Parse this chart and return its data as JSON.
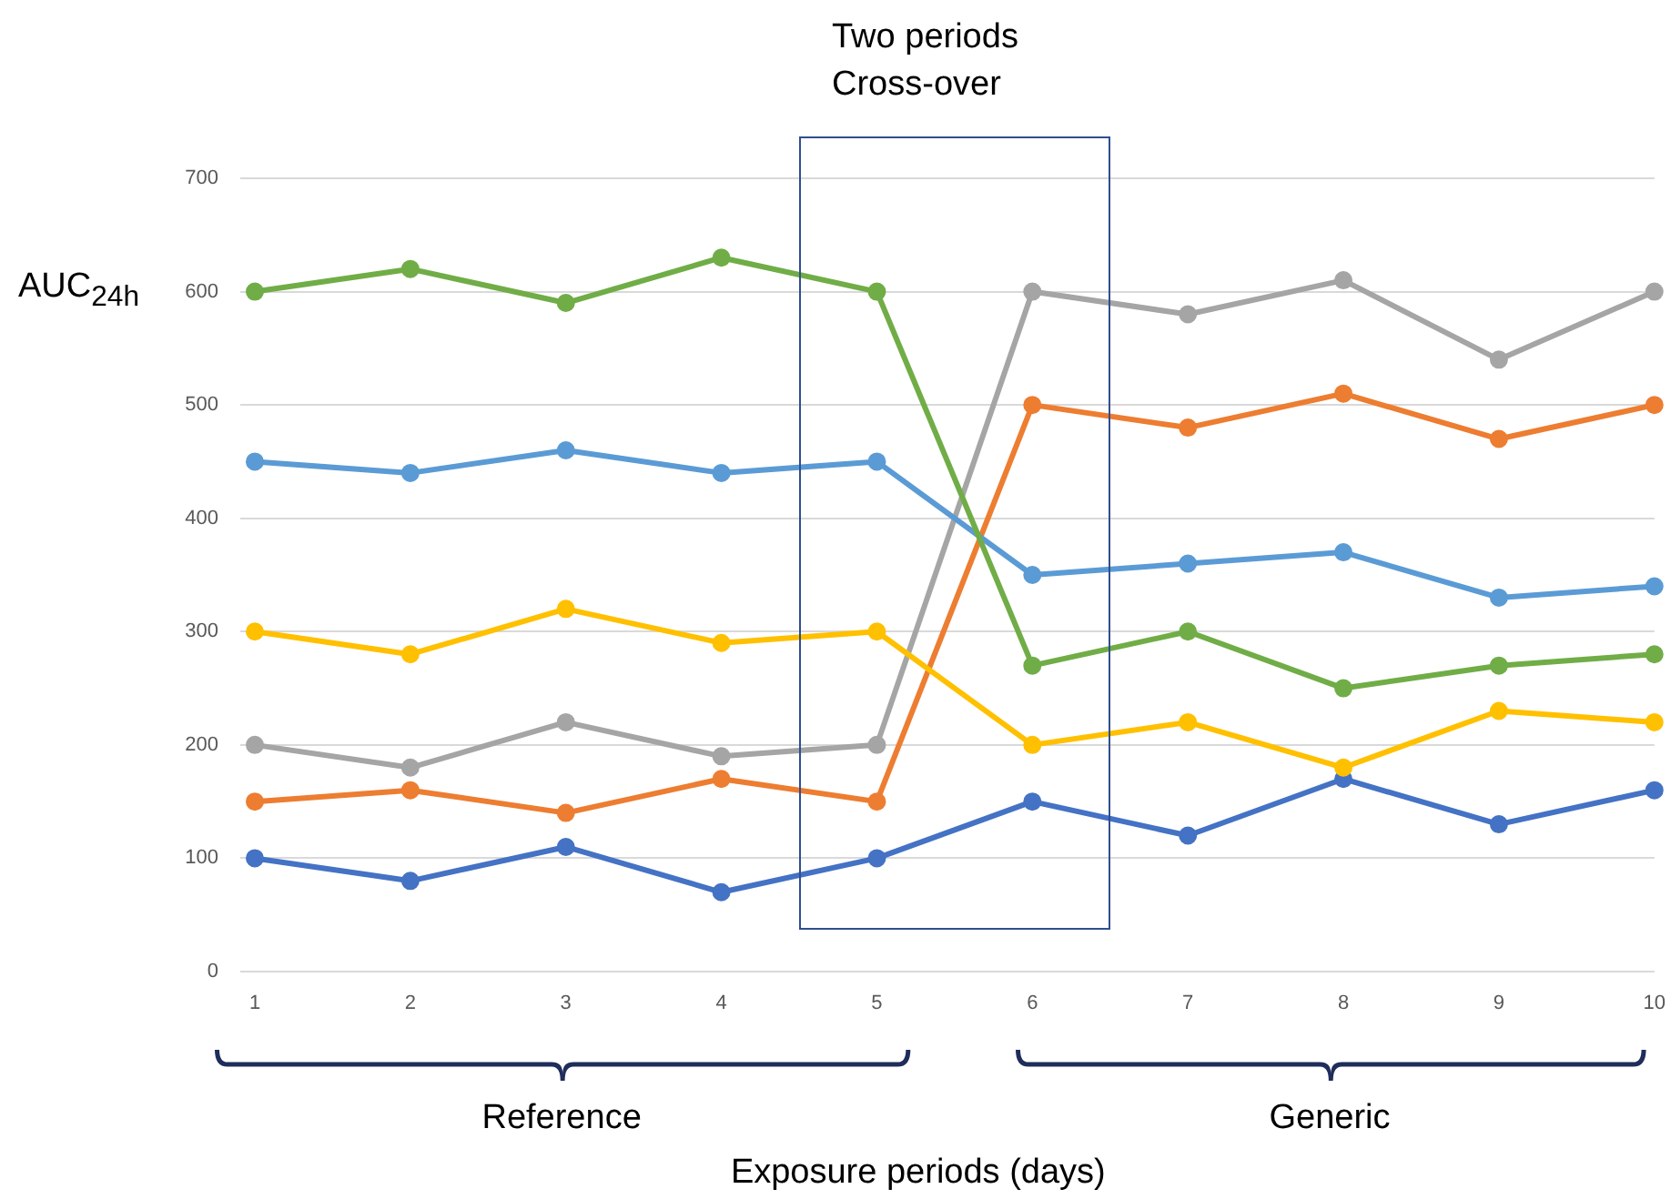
{
  "chart_data": {
    "type": "line",
    "xlabel": "Exposure periods (days)",
    "ylabel": "AUC$_{24h}$",
    "categories": [
      "1",
      "2",
      "3",
      "4",
      "5",
      "6",
      "7",
      "8",
      "9",
      "10"
    ],
    "series": [
      {
        "color": "#70ad47",
        "values": [
          600,
          620,
          590,
          630,
          600,
          270,
          300,
          250,
          270,
          280
        ]
      },
      {
        "color": "#5b9bd5",
        "values": [
          450,
          440,
          460,
          440,
          450,
          350,
          360,
          370,
          330,
          340
        ]
      },
      {
        "color": "#ffc000",
        "values": [
          300,
          280,
          320,
          290,
          300,
          200,
          220,
          180,
          230,
          220
        ]
      },
      {
        "color": "#a5a5a5",
        "values": [
          200,
          180,
          220,
          190,
          200,
          600,
          580,
          610,
          540,
          600
        ]
      },
      {
        "color": "#ed7d31",
        "values": [
          150,
          160,
          140,
          170,
          150,
          500,
          480,
          510,
          470,
          500
        ]
      },
      {
        "color": "#4472c4",
        "values": [
          100,
          80,
          110,
          70,
          100,
          150,
          120,
          170,
          130,
          160
        ]
      }
    ],
    "ylim": [
      0,
      700
    ],
    "yticks": [
      0,
      100,
      200,
      300,
      400,
      500,
      600,
      700
    ],
    "grid": "y",
    "legend": false,
    "marker": "circle",
    "line_style": "solid",
    "annotations": [
      "Two periods\nCross-over",
      "Reference",
      "Generic"
    ]
  }
}
